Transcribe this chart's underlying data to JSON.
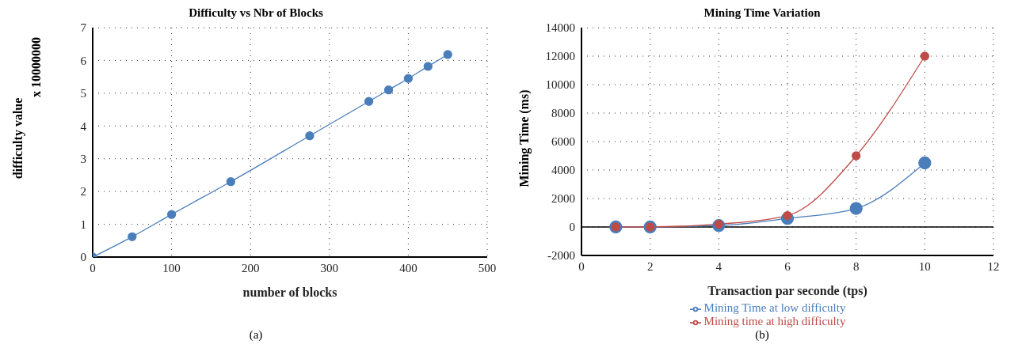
{
  "chart_data": [
    {
      "type": "line",
      "title": "Difficulty vs Nbr of Blocks",
      "xlabel": "number of blocks",
      "ylabel": "difficulty value",
      "annotations": [
        "x 10000000",
        "(a)"
      ],
      "x": [
        0,
        50,
        100,
        175,
        275,
        350,
        375,
        400,
        425,
        450
      ],
      "series": [
        {
          "color": "#4a7ebb",
          "values": [
            0,
            0.62,
            1.3,
            2.3,
            3.7,
            4.75,
            5.1,
            5.45,
            5.82,
            6.18
          ]
        }
      ],
      "xlim": [
        0,
        500
      ],
      "xticks": [
        0,
        100,
        200,
        300,
        400,
        500
      ],
      "ylim": [
        0,
        7
      ],
      "yticks": [
        0,
        1,
        2,
        3,
        4,
        5,
        6,
        7
      ],
      "grid": true,
      "marker": "circle",
      "line_style": "solid",
      "legend": false
    },
    {
      "type": "line",
      "title": "Mining Time Variation",
      "xlabel": "Transaction par seconde (tps)",
      "ylabel": "Mining Time (ms)",
      "annotations": [
        "(b)"
      ],
      "x": [
        1,
        2,
        4,
        6,
        8,
        10
      ],
      "series": [
        {
          "name": "Mining Time at low difficulty",
          "color": "#4a7ebb",
          "values": [
            0,
            0,
            100,
            600,
            1300,
            4500
          ]
        },
        {
          "name": "Mining time at high difficulty",
          "color": "#be4b48",
          "values": [
            0,
            0,
            200,
            800,
            5000,
            12000
          ]
        }
      ],
      "xlim": [
        0,
        12
      ],
      "xticks": [
        0,
        2,
        4,
        6,
        8,
        10,
        12
      ],
      "ylim": [
        -2000,
        14000
      ],
      "yticks": [
        -2000,
        0,
        2000,
        4000,
        6000,
        8000,
        10000,
        12000,
        14000
      ],
      "grid": true,
      "marker": "circle",
      "line_style": "solid",
      "legend": "bottom"
    }
  ]
}
